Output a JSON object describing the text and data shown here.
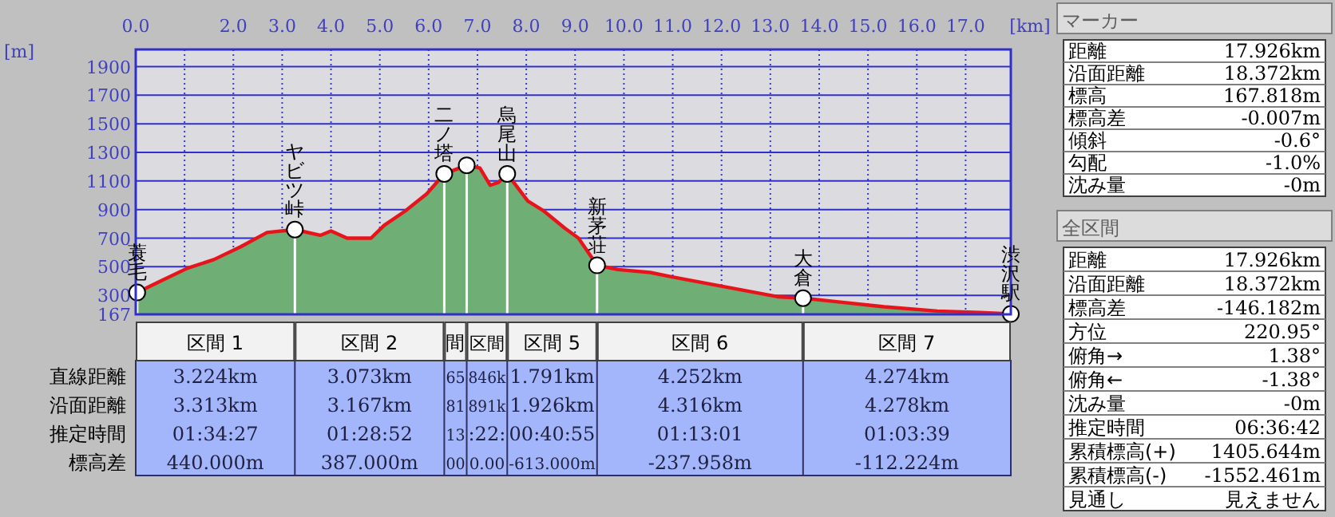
{
  "chart_data": [
    {
      "type": "area",
      "xlabel": "[km]",
      "ylabel": "[m]",
      "xlim": [
        0,
        17.926
      ],
      "ylim": [
        167,
        2020
      ],
      "xticks": [
        {
          "value": 0,
          "label": "0.0"
        },
        {
          "value": 1,
          "label": null
        },
        {
          "value": 2,
          "label": "2.0"
        },
        {
          "value": 3,
          "label": "3.0"
        },
        {
          "value": 4,
          "label": "4.0"
        },
        {
          "value": 5,
          "label": "5.0"
        },
        {
          "value": 6,
          "label": "6.0"
        },
        {
          "value": 7,
          "label": "7.0"
        },
        {
          "value": 8,
          "label": "8.0"
        },
        {
          "value": 9,
          "label": "9.0"
        },
        {
          "value": 10,
          "label": "10.0"
        },
        {
          "value": 11,
          "label": "11.0"
        },
        {
          "value": 12,
          "label": "12.0"
        },
        {
          "value": 13,
          "label": "13.0"
        },
        {
          "value": 14,
          "label": "14.0"
        },
        {
          "value": 15,
          "label": "15.0"
        },
        {
          "value": 16,
          "label": "16.0"
        },
        {
          "value": 17,
          "label": "17.0"
        }
      ],
      "yticks": [
        167,
        300,
        500,
        700,
        900,
        1100,
        1300,
        1500,
        1700,
        1900
      ],
      "grid": true,
      "series": [
        {
          "color": "#6fae74",
          "x": [
            0.03,
            0.51,
            1.06,
            1.6,
            2.15,
            2.69,
            3.26,
            3.78,
            4.0,
            4.33,
            4.82,
            5.09,
            5.52,
            5.96,
            6.32,
            6.78,
            7.05,
            7.26,
            7.43,
            7.61,
            8.03,
            8.36,
            8.79,
            9.07,
            9.45,
            9.88,
            10.54,
            10.97,
            12.06,
            13.15,
            13.67,
            14.24,
            15.33,
            16.42,
            17.29,
            17.926
          ],
          "values": [
            320,
            400,
            490,
            550,
            640,
            740,
            760,
            720,
            750,
            700,
            700,
            790,
            890,
            1010,
            1150,
            1210,
            1190,
            1070,
            1090,
            1150,
            960,
            890,
            770,
            700,
            510,
            480,
            460,
            430,
            360,
            290,
            280,
            260,
            220,
            190,
            180,
            170
          ]
        },
        {
          "type": "lollipop",
          "marker": "circle",
          "color": "#ffffff",
          "x": [
            0.03,
            3.26,
            6.32,
            6.78,
            7.61,
            9.45,
            13.67,
            17.926
          ],
          "values": [
            320,
            760,
            1150,
            1210,
            1150,
            510,
            280,
            170
          ]
        }
      ],
      "annotations": [
        {
          "text": "蓑毛",
          "x": 0.03,
          "y": 320
        },
        {
          "text": "ヤビツ峠",
          "x": 3.26,
          "y": 760
        },
        {
          "text": "二ノ塔",
          "x": 6.32,
          "y": 1150
        },
        {
          "text": "烏尾山",
          "x": 7.61,
          "y": 1150
        },
        {
          "text": "新茅荘",
          "x": 9.45,
          "y": 510
        },
        {
          "text": "大倉",
          "x": 13.67,
          "y": 280
        },
        {
          "text": "渋沢駅",
          "x": 17.926,
          "y": 170
        }
      ]
    },
    {
      "type": "other",
      "categories": [
        "区間 1",
        "区間 2",
        "間",
        "区間",
        "区間 5",
        "区間 6",
        "区間 7"
      ],
      "y_categories": [
        "直線距離",
        "沿面距離",
        "推定時間",
        "標高差"
      ],
      "cell_labels": [
        [
          "3.224km",
          "3.073km",
          "65",
          "846k",
          "1.791km",
          "4.252km",
          "4.274km"
        ],
        [
          "3.313km",
          "3.167km",
          "81",
          "891k",
          "1.926km",
          "4.316km",
          "4.278km"
        ],
        [
          "01:34:27",
          "01:28:52",
          "13",
          ":22:",
          "00:40:55",
          "01:13:01",
          "01:03:39"
        ],
        [
          "440.000m",
          "387.000m",
          "00",
          "0.00",
          "-613.000m",
          "-237.958m",
          "-112.224m"
        ]
      ]
    },
    {
      "type": "other",
      "title": "マーカー",
      "y_categories": [
        "距離",
        "沿面距離",
        "標高",
        "標高差",
        "傾斜",
        "勾配",
        "沈み量"
      ],
      "cell_labels": [
        [
          "17.926km"
        ],
        [
          "18.372km"
        ],
        [
          "167.818m"
        ],
        [
          "-0.007m"
        ],
        [
          "-0.6°"
        ],
        [
          "-1.0%"
        ],
        [
          "-0m"
        ]
      ]
    },
    {
      "type": "other",
      "title": "全区間",
      "y_categories": [
        "距離",
        "沿面距離",
        "標高差",
        "方位",
        "俯角→",
        "俯角←",
        "沈み量",
        "推定時間",
        "累積標高(+)",
        "累積標高(-)",
        "見通し"
      ],
      "cell_labels": [
        [
          "17.926km"
        ],
        [
          "18.372km"
        ],
        [
          "-146.182m"
        ],
        [
          "220.95°"
        ],
        [
          "1.38°"
        ],
        [
          "-1.38°"
        ],
        [
          "-0m"
        ],
        [
          "06:36:42"
        ],
        [
          "1405.644m"
        ],
        [
          "-1552.461m"
        ],
        [
          "見えません"
        ]
      ]
    }
  ]
}
